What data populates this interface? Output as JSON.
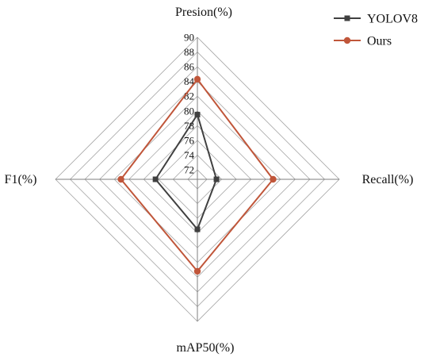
{
  "chart_data": {
    "type": "radar",
    "axes": [
      "Presion(%)",
      "Recall(%)",
      "mAP50(%)",
      "F1(%)"
    ],
    "scale": {
      "min": 72,
      "max": 90,
      "step": 2,
      "ticks": [
        "72",
        "74",
        "76",
        "78",
        "80",
        "82",
        "84",
        "86",
        "88",
        "90"
      ]
    },
    "series": [
      {
        "name": "YOLOV8",
        "color": "#404040",
        "marker": "square",
        "values": [
          79.5,
          73.3,
          77.5,
          76.4
        ]
      },
      {
        "name": "Ours",
        "color": "#C0563A",
        "marker": "circle",
        "values": [
          84.3,
          81.0,
          83.2,
          81.1
        ]
      }
    ],
    "grid": true,
    "legend_position": "top-right"
  }
}
